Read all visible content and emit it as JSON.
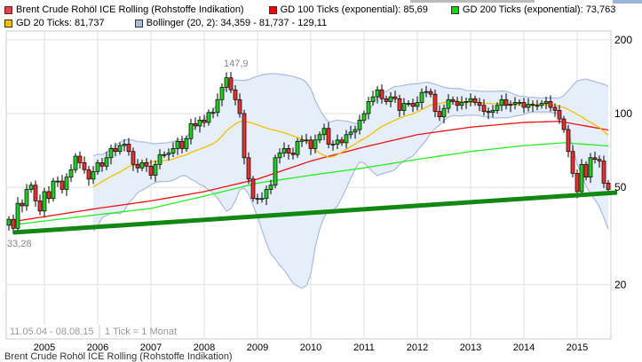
{
  "legend": [
    {
      "label": "Brent Crude Rohöl ICE Rolling (Rohstoffe Indikation)",
      "color": "#e84040"
    },
    {
      "label": "GD 100 Ticks (exponential): 85,69",
      "color": "#ff0000"
    },
    {
      "label": "GD 200 Ticks (exponential): 73,763",
      "color": "#00dd00"
    },
    {
      "label": "GD 20 Ticks: 81,737",
      "color": "#f5c000"
    },
    {
      "label": "Bollinger (20, 2): 34,359 - 81,737 - 129,11",
      "color": "#a8bde0"
    }
  ],
  "footer_label": "Brent Crude Rohöl ICE Rolling (Rohstoffe Indikation)",
  "chart_data": {
    "type": "candlestick",
    "scale": "log",
    "range_label": "11.05.04 - 08.08.15",
    "tick_label": "1 Tick = 1 Monat",
    "x_tick_labels": [
      "2005",
      "2006",
      "2007",
      "2008",
      "2009",
      "2010",
      "2011",
      "2012",
      "2013",
      "2014",
      "2015"
    ],
    "y_tick_labels": [
      "200",
      "100",
      "50",
      "20"
    ],
    "y_ticks": [
      200,
      100,
      50,
      20
    ],
    "start": "2004-05",
    "up_color": "#22cc22",
    "down_color": "#e83030",
    "first_open": 35,
    "close": [
      37,
      34,
      43,
      42,
      49,
      51,
      44,
      40,
      48,
      45,
      53,
      53,
      49,
      55,
      59,
      67,
      63,
      59,
      54,
      58,
      63,
      61,
      66,
      72,
      70,
      74,
      75,
      70,
      62,
      60,
      63,
      61,
      56,
      62,
      68,
      68,
      69,
      72,
      77,
      72,
      79,
      91,
      89,
      94,
      92,
      101,
      101,
      114,
      128,
      140,
      125,
      114,
      100,
      66,
      54,
      45,
      45,
      45,
      49,
      51,
      66,
      69,
      72,
      69,
      68,
      77,
      78,
      78,
      72,
      78,
      82,
      87,
      75,
      75,
      78,
      76,
      82,
      84,
      86,
      94,
      100,
      112,
      117,
      125,
      115,
      112,
      117,
      115,
      103,
      110,
      110,
      107,
      111,
      122,
      123,
      120,
      102,
      97,
      105,
      114,
      112,
      108,
      111,
      112,
      115,
      111,
      108,
      102,
      101,
      103,
      108,
      114,
      108,
      109,
      111,
      111,
      106,
      109,
      108,
      108,
      110,
      112,
      106,
      103,
      95,
      86,
      70,
      57,
      48,
      62,
      55,
      66,
      65,
      64,
      52,
      49
    ],
    "annotations": [
      {
        "label": "147,9",
        "date": "2008-07",
        "value": 147.9,
        "kind": "high"
      },
      {
        "label": "33,28",
        "date": "2004-05",
        "value": 33.28,
        "kind": "low"
      }
    ],
    "gd100": [
      [
        "2004-05",
        36
      ],
      [
        "2006-01",
        41
      ],
      [
        "2007-01",
        44
      ],
      [
        "2008-01",
        48
      ],
      [
        "2009-01",
        54
      ],
      [
        "2010-01",
        64
      ],
      [
        "2011-01",
        73
      ],
      [
        "2012-01",
        82
      ],
      [
        "2013-01",
        88
      ],
      [
        "2014-01",
        92
      ],
      [
        "2014-09",
        93
      ],
      [
        "2015-08",
        85.69
      ]
    ],
    "gd200": [
      [
        "2004-05",
        35
      ],
      [
        "2007-01",
        41
      ],
      [
        "2008-01",
        46
      ],
      [
        "2009-01",
        52
      ],
      [
        "2010-01",
        56
      ],
      [
        "2011-01",
        60
      ],
      [
        "2012-01",
        65
      ],
      [
        "2013-01",
        70
      ],
      [
        "2014-01",
        74
      ],
      [
        "2014-10",
        76
      ],
      [
        "2015-08",
        73.763
      ]
    ],
    "trendline": [
      [
        "2004-06",
        32.7
      ],
      [
        "2015-10",
        47.6
      ]
    ],
    "bollinger": {
      "period": 20,
      "k": 2
    }
  }
}
